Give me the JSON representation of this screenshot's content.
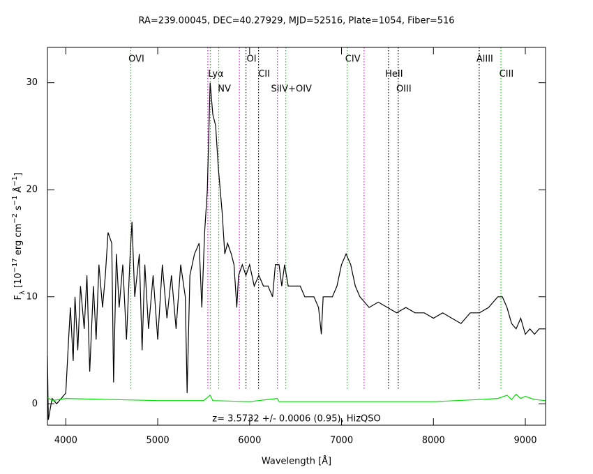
{
  "chart_data": {
    "type": "line",
    "title": "RA=239.00045, DEC=40.27929, MJD=52516, Plate=1054, Fiber=516",
    "x_label": "Wavelength [Å]",
    "y_label": [
      "F",
      "λ",
      " [10",
      "−17",
      " erg cm",
      "−2",
      " s",
      "−1",
      " Å",
      "−1",
      "]"
    ],
    "annotation": "z= 3.5732 +/- 0.0006 (0.95), HizQSO",
    "xlim": [
      3800,
      9220
    ],
    "ylim": [
      -2,
      33.3
    ],
    "xticks": [
      4000,
      5000,
      6000,
      7000,
      8000,
      9000
    ],
    "yticks": [
      0,
      10,
      20,
      30
    ],
    "series": [
      {
        "color": "#000000",
        "x": [
          3800,
          3810,
          3850,
          3900,
          3950,
          4000,
          4030,
          4050,
          4080,
          4100,
          4130,
          4160,
          4200,
          4230,
          4260,
          4300,
          4330,
          4360,
          4400,
          4430,
          4460,
          4500,
          4520,
          4550,
          4580,
          4620,
          4660,
          4700,
          4720,
          4750,
          4800,
          4830,
          4860,
          4900,
          4950,
          5000,
          5050,
          5100,
          5150,
          5200,
          5250,
          5300,
          5320,
          5350,
          5400,
          5450,
          5480,
          5510,
          5540,
          5570,
          5600,
          5630,
          5660,
          5700,
          5730,
          5760,
          5800,
          5830,
          5860,
          5880,
          5920,
          5960,
          6000,
          6050,
          6100,
          6150,
          6200,
          6250,
          6280,
          6320,
          6350,
          6380,
          6400,
          6420,
          6450,
          6500,
          6550,
          6600,
          6650,
          6700,
          6750,
          6780,
          6800,
          6850,
          6900,
          6950,
          7000,
          7050,
          7100,
          7150,
          7200,
          7250,
          7300,
          7400,
          7500,
          7600,
          7700,
          7800,
          7900,
          8000,
          8100,
          8200,
          8300,
          8400,
          8500,
          8600,
          8700,
          8750,
          8800,
          8850,
          8900,
          8950,
          9000,
          9050,
          9100,
          9150,
          9220
        ],
        "values": [
          4.5,
          -1.5,
          0.5,
          0,
          0.5,
          1,
          6,
          9,
          4,
          10,
          5,
          11,
          7,
          12,
          3,
          11,
          6,
          13,
          9,
          12,
          16,
          15,
          2,
          14,
          9,
          13,
          6,
          14,
          17,
          10,
          14,
          5,
          13,
          7,
          12,
          6,
          13,
          8,
          12,
          7,
          13,
          10,
          1,
          12,
          14,
          15,
          9,
          16,
          20,
          30,
          27,
          26,
          22,
          18,
          14,
          15,
          14,
          13,
          9,
          12,
          13,
          12,
          13,
          11,
          12,
          11,
          11,
          10,
          13,
          13,
          11,
          13,
          12,
          11,
          11,
          11,
          11,
          10,
          10,
          10,
          9,
          6.5,
          10,
          10,
          10,
          11,
          13,
          14,
          13,
          11,
          10,
          9.5,
          9,
          9.5,
          9,
          8.5,
          9,
          8.5,
          8.5,
          8,
          8.5,
          8,
          7.5,
          8.5,
          8.5,
          9,
          10,
          10,
          9,
          7.5,
          7,
          8,
          6.5,
          7,
          6.5,
          7,
          7
        ]
      },
      {
        "color": "#00e000",
        "x": [
          3800,
          3850,
          4000,
          4500,
          5000,
          5500,
          5570,
          5600,
          6000,
          6300,
          6320,
          7000,
          8000,
          8500,
          8700,
          8800,
          8850,
          8900,
          8950,
          9000,
          9100,
          9220
        ],
        "values": [
          0.6,
          0.3,
          0.5,
          0.4,
          0.3,
          0.3,
          0.8,
          0.3,
          0.2,
          0.5,
          0.2,
          0.2,
          0.2,
          0.4,
          0.5,
          0.8,
          0.4,
          0.9,
          0.5,
          0.7,
          0.4,
          0.3
        ]
      }
    ],
    "lines": [
      {
        "label": "OVI",
        "wavelength": 4707,
        "color": "#00cc00"
      },
      {
        "label": null,
        "wavelength": 5545,
        "color": "#ff00ff"
      },
      {
        "label": "Lyα",
        "wavelength": 5572,
        "color": "#00cc00"
      },
      {
        "label": "NV",
        "wavelength": 5664,
        "color": "#00cc00"
      },
      {
        "label": null,
        "wavelength": 5889,
        "color": "#ff00ff"
      },
      {
        "label": "OI",
        "wavelength": 5960,
        "color": "#000000"
      },
      {
        "label": "CII",
        "wavelength": 6097,
        "color": "#000000"
      },
      {
        "label": null,
        "wavelength": 6302,
        "color": "#ff00ff"
      },
      {
        "label": "SiIV+OIV",
        "wavelength": 6394,
        "color": "#00cc00"
      },
      {
        "label": "CIV",
        "wavelength": 7062,
        "color": "#00cc00"
      },
      {
        "label": null,
        "wavelength": 7245,
        "color": "#ff00ff"
      },
      {
        "label": "HeII",
        "wavelength": 7511,
        "color": "#000000"
      },
      {
        "label": "OIII",
        "wavelength": 7617,
        "color": "#000000"
      },
      {
        "label": "AlIII",
        "wavelength": 8498,
        "color": "#000000"
      },
      {
        "label": "CIII",
        "wavelength": 8734,
        "color": "#00cc00"
      }
    ]
  }
}
